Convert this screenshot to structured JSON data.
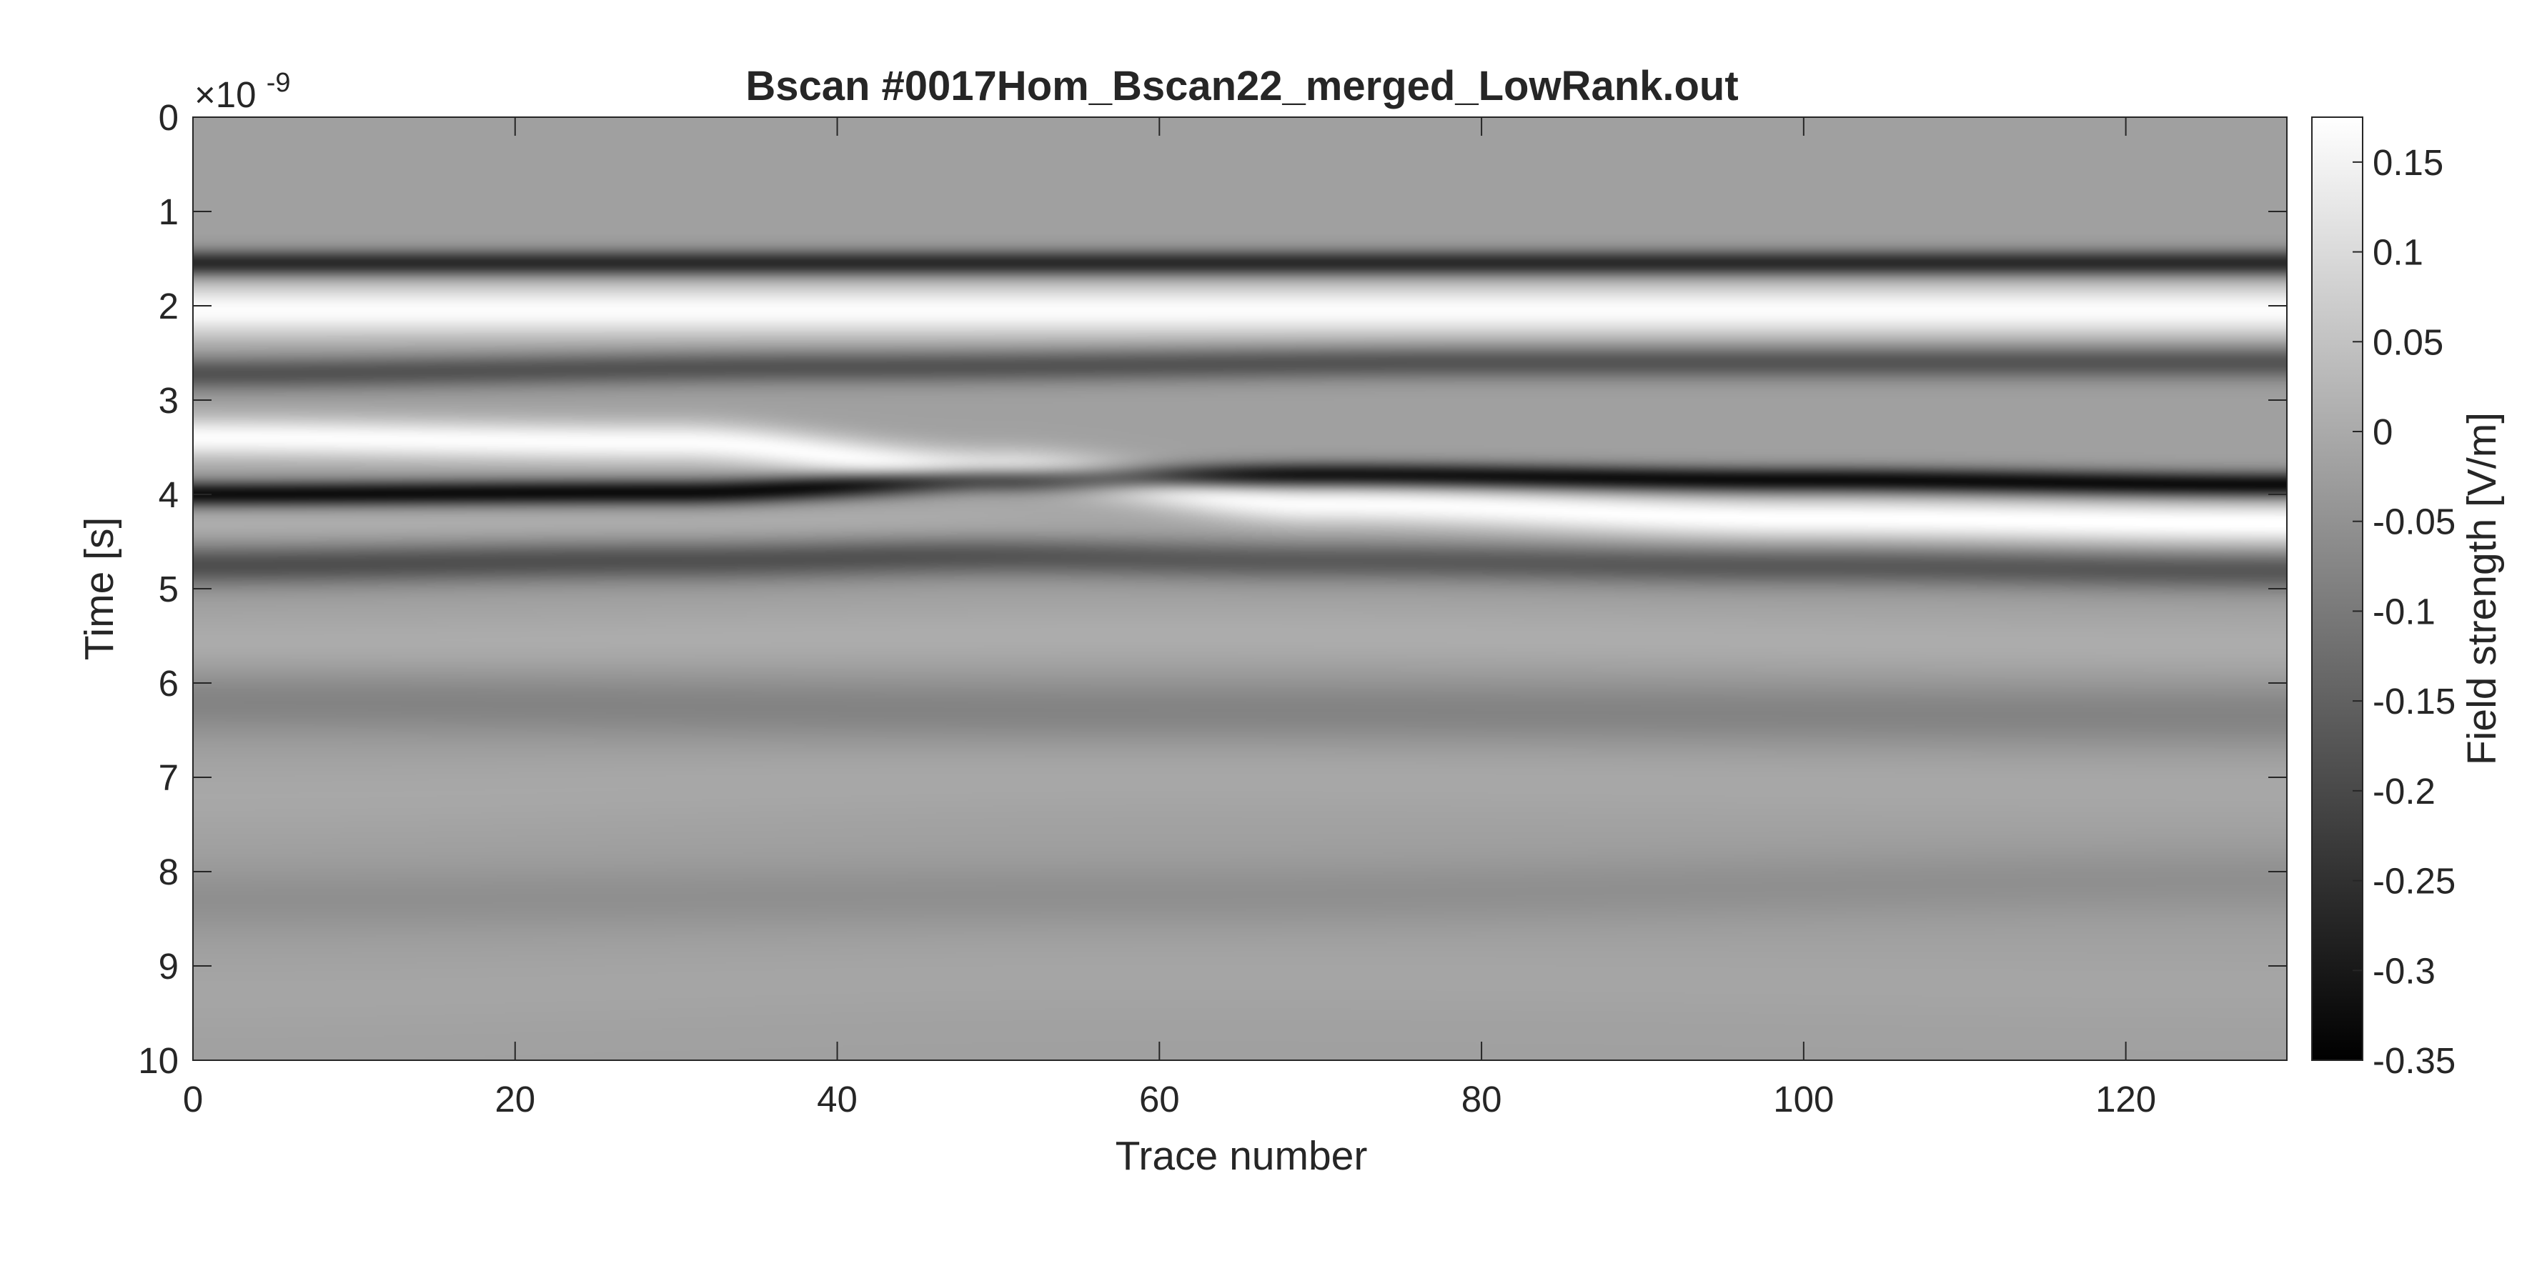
{
  "chart_data": {
    "type": "heatmap",
    "title": "Bscan #0017Hom_Bscan22_merged_LowRank.out",
    "xlabel": "Trace number",
    "ylabel": "Time [s]",
    "ylabel_exponent_base": "×10",
    "ylabel_exponent_power": "-9",
    "colorbar_label": "Field strength [V/m]",
    "colormap": "gray",
    "xlim": [
      0,
      130
    ],
    "ylim": [
      0,
      10
    ],
    "y_reversed": true,
    "clim": [
      -0.35,
      0.175
    ],
    "x_ticks": [
      {
        "value": 0,
        "label": "0"
      },
      {
        "value": 20,
        "label": "20"
      },
      {
        "value": 40,
        "label": "40"
      },
      {
        "value": 60,
        "label": "60"
      },
      {
        "value": 80,
        "label": "80"
      },
      {
        "value": 100,
        "label": "100"
      },
      {
        "value": 120,
        "label": "120"
      }
    ],
    "y_ticks": [
      {
        "value": 0,
        "label": "0"
      },
      {
        "value": 1,
        "label": "1"
      },
      {
        "value": 2,
        "label": "2"
      },
      {
        "value": 3,
        "label": "3"
      },
      {
        "value": 4,
        "label": "4"
      },
      {
        "value": 5,
        "label": "5"
      },
      {
        "value": 6,
        "label": "6"
      },
      {
        "value": 7,
        "label": "7"
      },
      {
        "value": 8,
        "label": "8"
      },
      {
        "value": 9,
        "label": "9"
      },
      {
        "value": 10,
        "label": "10"
      }
    ],
    "colorbar_ticks": [
      {
        "value": 0.15,
        "label": "0.15"
      },
      {
        "value": 0.1,
        "label": "0.1"
      },
      {
        "value": 0.05,
        "label": "0.05"
      },
      {
        "value": 0,
        "label": "0"
      },
      {
        "value": -0.05,
        "label": "-0.05"
      },
      {
        "value": -0.1,
        "label": "-0.1"
      },
      {
        "value": -0.15,
        "label": "-0.15"
      },
      {
        "value": -0.2,
        "label": "-0.2"
      },
      {
        "value": -0.25,
        "label": "-0.25"
      },
      {
        "value": -0.3,
        "label": "-0.3"
      },
      {
        "value": -0.35,
        "label": "-0.35"
      }
    ],
    "background_value": -0.02,
    "reflections": [
      {
        "name": "direct-negative",
        "value": -0.25,
        "width": 0.14,
        "time_at_trace": [
          [
            0,
            1.55
          ],
          [
            130,
            1.55
          ]
        ]
      },
      {
        "name": "direct-positive",
        "value": 0.19,
        "width": 0.28,
        "time_at_trace": [
          [
            0,
            2.05
          ],
          [
            130,
            2.05
          ]
        ]
      },
      {
        "name": "direct-negative-2",
        "value": -0.16,
        "width": 0.18,
        "time_at_trace": [
          [
            0,
            2.72
          ],
          [
            40,
            2.65
          ],
          [
            80,
            2.6
          ],
          [
            130,
            2.6
          ]
        ]
      },
      {
        "name": "reflector-positive",
        "value": 0.19,
        "width": 0.22,
        "time_at_trace": [
          [
            0,
            3.4
          ],
          [
            30,
            3.45
          ],
          [
            50,
            3.75
          ],
          [
            70,
            4.1
          ],
          [
            100,
            4.25
          ],
          [
            130,
            4.3
          ]
        ]
      },
      {
        "name": "reflector-negative",
        "value": -0.31,
        "width": 0.14,
        "time_at_trace": [
          [
            0,
            4.0
          ],
          [
            30,
            3.98
          ],
          [
            50,
            3.85
          ],
          [
            70,
            3.8
          ],
          [
            100,
            3.85
          ],
          [
            130,
            3.9
          ]
        ]
      },
      {
        "name": "reflector-negative-tail",
        "value": -0.17,
        "width": 0.22,
        "time_at_trace": [
          [
            0,
            4.75
          ],
          [
            30,
            4.7
          ],
          [
            50,
            4.65
          ],
          [
            70,
            4.7
          ],
          [
            100,
            4.75
          ],
          [
            130,
            4.8
          ]
        ]
      },
      {
        "name": "upper-positive-band",
        "value": 0.03,
        "width": 0.28,
        "time_at_trace": [
          [
            0,
            4.3
          ],
          [
            40,
            4.35
          ],
          [
            70,
            4.6
          ],
          [
            130,
            4.6
          ]
        ]
      },
      {
        "name": "faint-positive-5",
        "value": 0.025,
        "width": 0.32,
        "time_at_trace": [
          [
            0,
            5.6
          ],
          [
            60,
            5.5
          ],
          [
            130,
            5.6
          ]
        ]
      },
      {
        "name": "faint-negative-6",
        "value": -0.06,
        "width": 0.35,
        "time_at_trace": [
          [
            0,
            6.2
          ],
          [
            60,
            6.3
          ],
          [
            130,
            6.35
          ]
        ]
      },
      {
        "name": "faint-positive-7",
        "value": 0.015,
        "width": 0.4,
        "time_at_trace": [
          [
            0,
            7.2
          ],
          [
            60,
            7.0
          ],
          [
            130,
            7.1
          ]
        ]
      },
      {
        "name": "faint-negative-8",
        "value": -0.035,
        "width": 0.35,
        "time_at_trace": [
          [
            0,
            8.3
          ],
          [
            60,
            8.25
          ],
          [
            130,
            8.1
          ]
        ]
      },
      {
        "name": "faint-positive-9",
        "value": 0.01,
        "width": 0.4,
        "time_at_trace": [
          [
            0,
            9.3
          ],
          [
            60,
            9.1
          ],
          [
            130,
            9.2
          ]
        ]
      }
    ]
  }
}
